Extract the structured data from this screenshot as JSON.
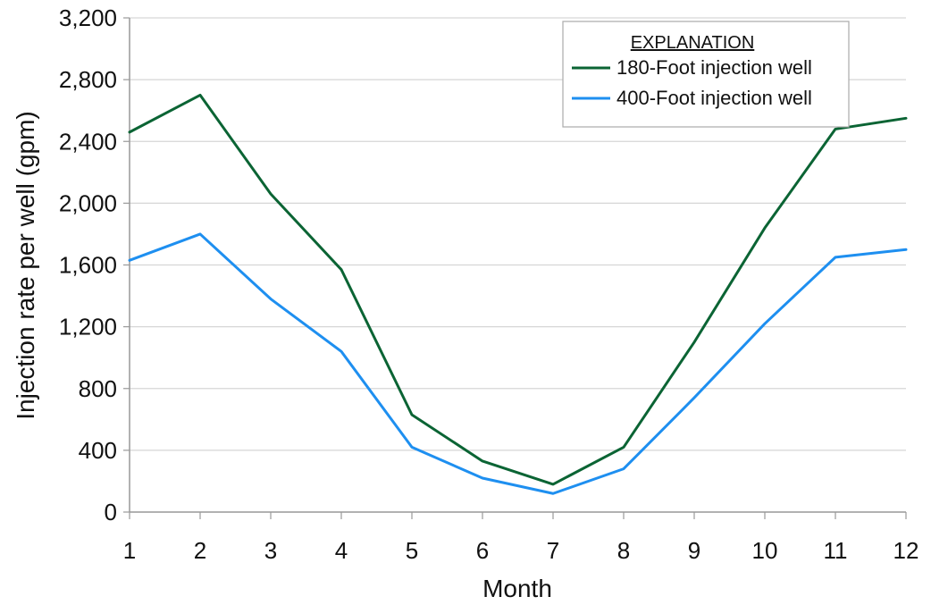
{
  "chart_data": {
    "type": "line",
    "title": "",
    "xlabel": "Month",
    "ylabel": "Injection rate per well (gpm)",
    "x": [
      1,
      2,
      3,
      4,
      5,
      6,
      7,
      8,
      9,
      10,
      11,
      12
    ],
    "x_tick_labels": [
      "1",
      "2",
      "3",
      "4",
      "5",
      "6",
      "7",
      "8",
      "9",
      "10",
      "11",
      "12"
    ],
    "xlim": [
      1,
      12
    ],
    "ylim": [
      0,
      3200
    ],
    "y_ticks": [
      0,
      400,
      800,
      1200,
      1600,
      2000,
      2400,
      2800,
      3200
    ],
    "y_tick_labels": [
      "0",
      "400",
      "800",
      "1,200",
      "1,600",
      "2,000",
      "2,400",
      "2,800",
      "3,200"
    ],
    "grid": true,
    "legend": {
      "title": "EXPLANATION",
      "position": "top-right"
    },
    "series": [
      {
        "name": "180-Foot injection well",
        "color": "#0b6434",
        "values": [
          2460,
          2700,
          2060,
          1570,
          630,
          330,
          180,
          420,
          1100,
          1840,
          2480,
          2550
        ]
      },
      {
        "name": "400-Foot injection well",
        "color": "#1e8ff0",
        "values": [
          1630,
          1800,
          1380,
          1040,
          420,
          220,
          120,
          280,
          740,
          1220,
          1650,
          1700
        ]
      }
    ]
  }
}
